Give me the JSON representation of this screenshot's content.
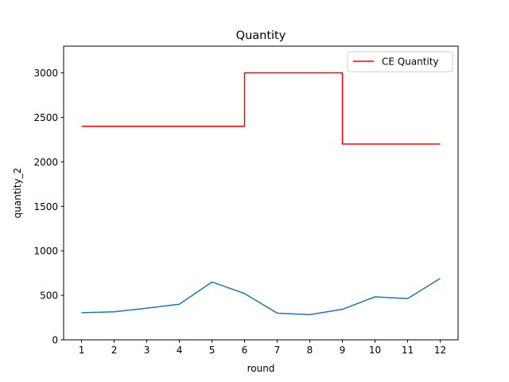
{
  "chart_data": {
    "type": "line",
    "title": "Quantity",
    "xlabel": "round",
    "ylabel": "quantity_2",
    "x": [
      1,
      2,
      3,
      4,
      5,
      6,
      7,
      8,
      9,
      10,
      11,
      12
    ],
    "xlim": [
      0.45,
      12.55
    ],
    "ylim": [
      0,
      3300
    ],
    "xticks": [
      1,
      2,
      3,
      4,
      5,
      6,
      7,
      8,
      9,
      10,
      11,
      12
    ],
    "yticks": [
      0,
      500,
      1000,
      1500,
      2000,
      2500,
      3000
    ],
    "grid": false,
    "legend_position": "top-right",
    "series": [
      {
        "name": "",
        "color": "#1f77b4",
        "style": "line",
        "values": [
          305,
          315,
          355,
          400,
          650,
          520,
          300,
          283,
          343,
          483,
          463,
          690
        ]
      },
      {
        "name": "CE Quantity",
        "color": "#ff0000",
        "style": "step-post",
        "values": [
          2400,
          2400,
          2400,
          2400,
          2400,
          3000,
          3000,
          3000,
          2200,
          2200,
          2200,
          2200
        ]
      }
    ]
  }
}
